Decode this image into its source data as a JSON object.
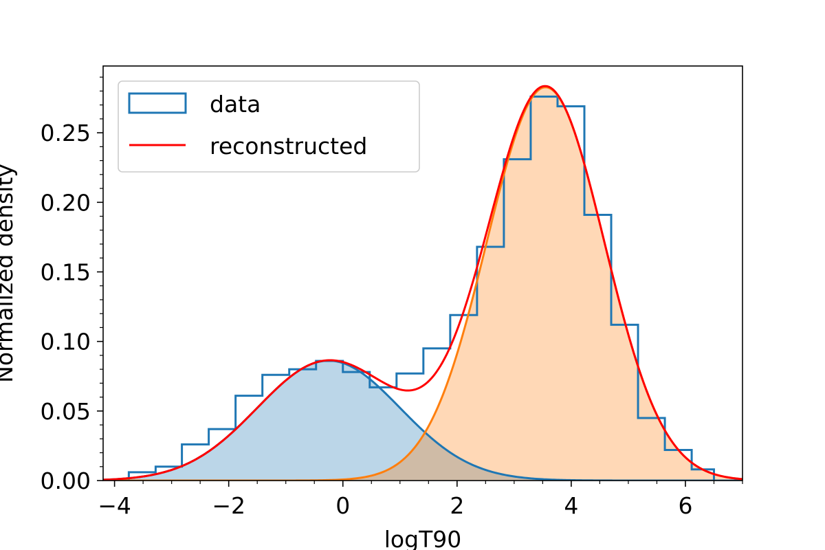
{
  "chart_data": {
    "type": "histogram",
    "title": "",
    "xlabel": "logT90",
    "ylabel": "Normalized density",
    "xlim": [
      -4.2,
      7.0
    ],
    "ylim": [
      0.0,
      0.298
    ],
    "grid": false,
    "legend_position": "top-left",
    "x_ticks": [
      -4,
      -2,
      0,
      2,
      4,
      6
    ],
    "x_tick_labels": [
      "−4",
      "−2",
      "0",
      "2",
      "4",
      "6"
    ],
    "y_ticks": [
      0.0,
      0.05,
      0.1,
      0.15,
      0.2,
      0.25
    ],
    "y_tick_labels": [
      "0.00",
      "0.05",
      "0.10",
      "0.15",
      "0.20",
      "0.25"
    ],
    "histogram": {
      "name": "data",
      "color": "#1f77b4",
      "bin_edges": [
        -3.75,
        -3.28,
        -2.82,
        -2.35,
        -1.88,
        -1.41,
        -0.94,
        -0.47,
        0.0,
        0.47,
        0.94,
        1.41,
        1.88,
        2.35,
        2.82,
        3.29,
        3.76,
        4.23,
        4.7,
        5.17,
        5.64,
        6.11,
        6.5
      ],
      "values": [
        0.006,
        0.01,
        0.026,
        0.037,
        0.061,
        0.076,
        0.08,
        0.086,
        0.078,
        0.067,
        0.077,
        0.095,
        0.119,
        0.168,
        0.231,
        0.276,
        0.269,
        0.191,
        0.112,
        0.045,
        0.022,
        0.008
      ]
    },
    "components": [
      {
        "color": "#1f77b4",
        "fill": "#1f77b4",
        "weight": 0.27,
        "mean": -0.25,
        "sigma": 1.25,
        "fill_opacity": 0.3
      },
      {
        "color": "#ff7f0e",
        "fill": "#ff7f0e",
        "weight": 0.73,
        "mean": 3.55,
        "sigma": 1.03,
        "fill_opacity": 0.3
      }
    ],
    "series": [
      {
        "name": "reconstructed",
        "color": "#ff0000"
      }
    ],
    "legend": [
      {
        "label": "data",
        "kind": "patch",
        "color": "#1f77b4"
      },
      {
        "label": "reconstructed",
        "kind": "line",
        "color": "#ff0000"
      }
    ]
  }
}
